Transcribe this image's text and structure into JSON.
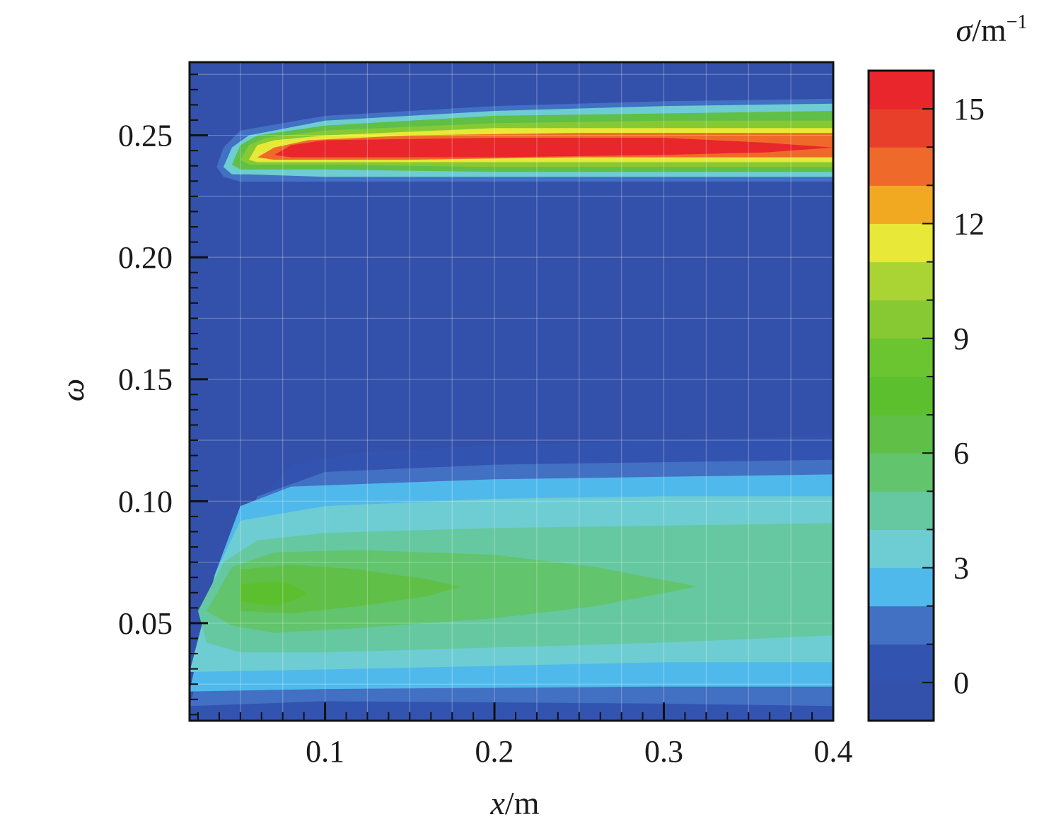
{
  "chart_data": {
    "type": "heatmap",
    "subtype": "filled-contour",
    "title": "",
    "xlabel": {
      "var": "x",
      "unit": "/m"
    },
    "ylabel": "ω",
    "xlim": [
      0.02,
      0.4
    ],
    "ylim": [
      0.01,
      0.28
    ],
    "x_ticks": [
      {
        "value": 0.1,
        "label": "0.1"
      },
      {
        "value": 0.2,
        "label": "0.2"
      },
      {
        "value": 0.3,
        "label": "0.3"
      },
      {
        "value": 0.4,
        "label": "0.4"
      }
    ],
    "y_ticks": [
      {
        "value": 0.05,
        "label": "0.05"
      },
      {
        "value": 0.1,
        "label": "0.10"
      },
      {
        "value": 0.15,
        "label": "0.15"
      },
      {
        "value": 0.2,
        "label": "0.20"
      },
      {
        "value": 0.25,
        "label": "0.25"
      }
    ],
    "grid": true,
    "background_color": "#3350aa",
    "colorbar": {
      "label": {
        "var": "σ",
        "unit": "/m",
        "exp": "−1"
      },
      "range": [
        -1,
        16
      ],
      "tick_labels": [
        {
          "value": 0,
          "label": "0"
        },
        {
          "value": 3,
          "label": "3"
        },
        {
          "value": 6,
          "label": "6"
        },
        {
          "value": 9,
          "label": "9"
        },
        {
          "value": 12,
          "label": "12"
        },
        {
          "value": 15,
          "label": "15"
        }
      ],
      "levels": [
        {
          "min": -1,
          "max": 0,
          "color": "#3350aa"
        },
        {
          "min": 0,
          "max": 1,
          "color": "#3353b0"
        },
        {
          "min": 1,
          "max": 2,
          "color": "#4270c3"
        },
        {
          "min": 2,
          "max": 3,
          "color": "#50b9eb"
        },
        {
          "min": 3,
          "max": 4,
          "color": "#6dcdd2"
        },
        {
          "min": 4,
          "max": 5,
          "color": "#66c8a0"
        },
        {
          "min": 5,
          "max": 6,
          "color": "#62c46c"
        },
        {
          "min": 6,
          "max": 7,
          "color": "#5fbf47"
        },
        {
          "min": 7,
          "max": 8,
          "color": "#5cc02e"
        },
        {
          "min": 8,
          "max": 9,
          "color": "#6ac530"
        },
        {
          "min": 9,
          "max": 10,
          "color": "#86c933"
        },
        {
          "min": 10,
          "max": 11,
          "color": "#a9d434"
        },
        {
          "min": 11,
          "max": 12,
          "color": "#e7e838"
        },
        {
          "min": 12,
          "max": 13,
          "color": "#f2a922"
        },
        {
          "min": 13,
          "max": 14,
          "color": "#ef6a2a"
        },
        {
          "min": 14,
          "max": 15,
          "color": "#e83f2a"
        },
        {
          "min": 15,
          "max": 16,
          "color": "#e8262b"
        }
      ]
    },
    "regions": [
      {
        "name": "lower-band",
        "polygons": [
          {
            "level": 1,
            "points": [
              [
                0.02,
                0.012
              ],
              [
                0.04,
                0.06
              ],
              [
                0.06,
                0.1
              ],
              [
                0.08,
                0.115
              ],
              [
                0.12,
                0.12
              ],
              [
                0.2,
                0.123
              ],
              [
                0.3,
                0.125
              ],
              [
                0.4,
                0.127
              ],
              [
                0.4,
                0.01
              ],
              [
                0.02,
                0.01
              ]
            ]
          },
          {
            "level": 2,
            "points": [
              [
                0.02,
                0.016
              ],
              [
                0.04,
                0.065
              ],
              [
                0.06,
                0.102
              ],
              [
                0.1,
                0.112
              ],
              [
                0.2,
                0.115
              ],
              [
                0.3,
                0.116
              ],
              [
                0.4,
                0.117
              ],
              [
                0.4,
                0.016
              ],
              [
                0.3,
                0.017
              ],
              [
                0.1,
                0.018
              ],
              [
                0.02,
                0.016
              ]
            ]
          },
          {
            "level": 3,
            "points": [
              [
                0.02,
                0.022
              ],
              [
                0.035,
                0.07
              ],
              [
                0.05,
                0.098
              ],
              [
                0.08,
                0.106
              ],
              [
                0.2,
                0.109
              ],
              [
                0.3,
                0.11
              ],
              [
                0.4,
                0.111
              ],
              [
                0.4,
                0.024
              ],
              [
                0.3,
                0.024
              ],
              [
                0.1,
                0.023
              ],
              [
                0.02,
                0.022
              ]
            ]
          },
          {
            "level": 4,
            "points": [
              [
                0.02,
                0.03
              ],
              [
                0.035,
                0.07
              ],
              [
                0.05,
                0.092
              ],
              [
                0.1,
                0.098
              ],
              [
                0.2,
                0.101
              ],
              [
                0.3,
                0.102
              ],
              [
                0.4,
                0.102
              ],
              [
                0.4,
                0.034
              ],
              [
                0.3,
                0.034
              ],
              [
                0.1,
                0.031
              ],
              [
                0.02,
                0.03
              ]
            ]
          },
          {
            "level": 5,
            "points": [
              [
                0.025,
                0.055
              ],
              [
                0.04,
                0.075
              ],
              [
                0.06,
                0.084
              ],
              [
                0.1,
                0.087
              ],
              [
                0.2,
                0.089
              ],
              [
                0.3,
                0.09
              ],
              [
                0.4,
                0.091
              ],
              [
                0.4,
                0.045
              ],
              [
                0.3,
                0.042
              ],
              [
                0.2,
                0.04
              ],
              [
                0.1,
                0.038
              ],
              [
                0.05,
                0.038
              ],
              [
                0.03,
                0.042
              ]
            ]
          },
          {
            "level": 6,
            "points": [
              [
                0.03,
                0.055
              ],
              [
                0.045,
                0.073
              ],
              [
                0.07,
                0.079
              ],
              [
                0.12,
                0.08
              ],
              [
                0.2,
                0.078
              ],
              [
                0.26,
                0.073
              ],
              [
                0.32,
                0.065
              ],
              [
                0.26,
                0.057
              ],
              [
                0.2,
                0.052
              ],
              [
                0.12,
                0.048
              ],
              [
                0.07,
                0.046
              ],
              [
                0.045,
                0.049
              ]
            ]
          },
          {
            "level": 7,
            "points": [
              [
                0.05,
                0.055
              ],
              [
                0.05,
                0.072
              ],
              [
                0.08,
                0.074
              ],
              [
                0.12,
                0.072
              ],
              [
                0.16,
                0.068
              ],
              [
                0.18,
                0.065
              ],
              [
                0.16,
                0.061
              ],
              [
                0.12,
                0.057
              ],
              [
                0.08,
                0.054
              ]
            ]
          },
          {
            "level": 8,
            "points": [
              [
                0.05,
                0.059
              ],
              [
                0.05,
                0.066
              ],
              [
                0.07,
                0.067
              ],
              [
                0.08,
                0.066
              ],
              [
                0.09,
                0.062
              ],
              [
                0.08,
                0.059
              ],
              [
                0.07,
                0.057
              ]
            ]
          }
        ]
      },
      {
        "name": "upper-band",
        "polygons": [
          {
            "level": 2,
            "points": [
              [
                0.036,
                0.237
              ],
              [
                0.04,
                0.245
              ],
              [
                0.05,
                0.252
              ],
              [
                0.1,
                0.258
              ],
              [
                0.2,
                0.262
              ],
              [
                0.3,
                0.264
              ],
              [
                0.4,
                0.265
              ],
              [
                0.4,
                0.231
              ],
              [
                0.3,
                0.231
              ],
              [
                0.2,
                0.231
              ],
              [
                0.1,
                0.231
              ],
              [
                0.05,
                0.231
              ],
              [
                0.04,
                0.233
              ]
            ]
          },
          {
            "level": 4,
            "points": [
              [
                0.04,
                0.237
              ],
              [
                0.045,
                0.245
              ],
              [
                0.055,
                0.25
              ],
              [
                0.1,
                0.256
              ],
              [
                0.2,
                0.26
              ],
              [
                0.3,
                0.262
              ],
              [
                0.4,
                0.263
              ],
              [
                0.4,
                0.233
              ],
              [
                0.3,
                0.233
              ],
              [
                0.2,
                0.233
              ],
              [
                0.1,
                0.233
              ],
              [
                0.055,
                0.234
              ],
              [
                0.045,
                0.234
              ]
            ]
          },
          {
            "level": 7,
            "points": [
              [
                0.045,
                0.238
              ],
              [
                0.05,
                0.246
              ],
              [
                0.06,
                0.25
              ],
              [
                0.1,
                0.254
              ],
              [
                0.2,
                0.258
              ],
              [
                0.3,
                0.259
              ],
              [
                0.4,
                0.26
              ],
              [
                0.4,
                0.235
              ],
              [
                0.3,
                0.235
              ],
              [
                0.2,
                0.235
              ],
              [
                0.1,
                0.236
              ],
              [
                0.06,
                0.236
              ],
              [
                0.05,
                0.236
              ]
            ]
          },
          {
            "level": 10,
            "points": [
              [
                0.05,
                0.24
              ],
              [
                0.055,
                0.246
              ],
              [
                0.065,
                0.249
              ],
              [
                0.1,
                0.252
              ],
              [
                0.2,
                0.255
              ],
              [
                0.3,
                0.256
              ],
              [
                0.4,
                0.256
              ],
              [
                0.4,
                0.237
              ],
              [
                0.3,
                0.237
              ],
              [
                0.2,
                0.237
              ],
              [
                0.1,
                0.238
              ],
              [
                0.065,
                0.238
              ],
              [
                0.055,
                0.238
              ]
            ]
          },
          {
            "level": 12,
            "points": [
              [
                0.055,
                0.24
              ],
              [
                0.06,
                0.246
              ],
              [
                0.07,
                0.248
              ],
              [
                0.1,
                0.25
              ],
              [
                0.2,
                0.253
              ],
              [
                0.3,
                0.253
              ],
              [
                0.4,
                0.253
              ],
              [
                0.4,
                0.239
              ],
              [
                0.3,
                0.239
              ],
              [
                0.2,
                0.239
              ],
              [
                0.1,
                0.239
              ],
              [
                0.07,
                0.239
              ],
              [
                0.06,
                0.239
              ]
            ]
          },
          {
            "level": 14,
            "points": [
              [
                0.06,
                0.241
              ],
              [
                0.07,
                0.245
              ],
              [
                0.09,
                0.248
              ],
              [
                0.15,
                0.25
              ],
              [
                0.25,
                0.251
              ],
              [
                0.35,
                0.251
              ],
              [
                0.4,
                0.251
              ],
              [
                0.4,
                0.241
              ],
              [
                0.35,
                0.241
              ],
              [
                0.25,
                0.241
              ],
              [
                0.15,
                0.24
              ],
              [
                0.09,
                0.24
              ],
              [
                0.07,
                0.24
              ]
            ]
          },
          {
            "level": 16,
            "points": [
              [
                0.07,
                0.242
              ],
              [
                0.08,
                0.246
              ],
              [
                0.1,
                0.248
              ],
              [
                0.2,
                0.249
              ],
              [
                0.3,
                0.249
              ],
              [
                0.36,
                0.247
              ],
              [
                0.4,
                0.245
              ],
              [
                0.36,
                0.243
              ],
              [
                0.3,
                0.242
              ],
              [
                0.2,
                0.241
              ],
              [
                0.1,
                0.241
              ],
              [
                0.08,
                0.241
              ]
            ]
          }
        ]
      }
    ]
  }
}
